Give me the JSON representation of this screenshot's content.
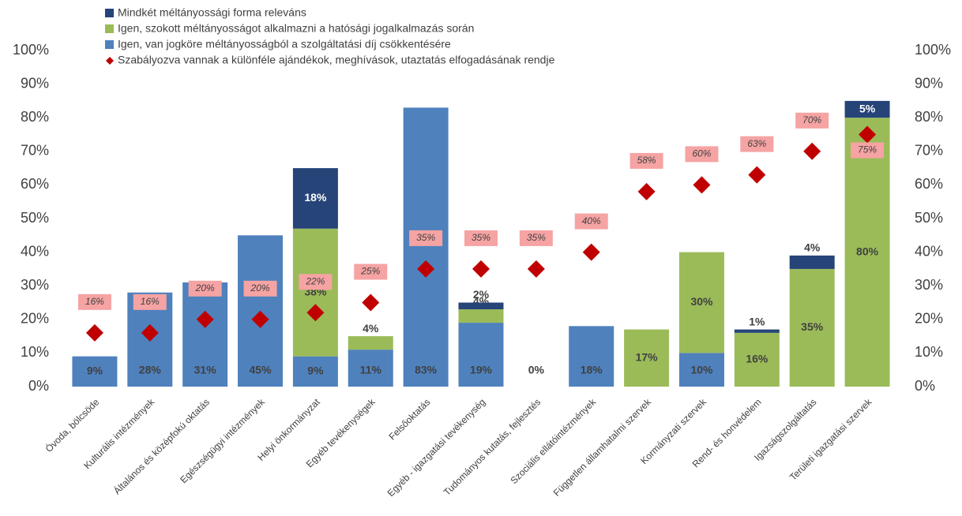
{
  "chart_data": {
    "type": "bar",
    "categories": [
      "Óvoda, bölcsöde",
      "Kulturális intézmények",
      "Általános és középfokú oktatás",
      "Egészségügyi intézmények",
      "Helyi önkormányzat",
      "Egyéb tevékenységek",
      "Felsőoktatás",
      "Egyéb - igazgatási tevékenység",
      "Tudományos kutatás, fejlesztés",
      "Szociális ellátóintézmények",
      "Független államhatalmi szervek",
      "Kormányzati szervek",
      "Rend- és honvédelem",
      "Igazságszolgáltatás",
      "Területi igazgatási szervek"
    ],
    "series": [
      {
        "name": "Igen, van jogköre méltányosságból a szolgáltatási díj csökkentésére",
        "color": "#4f81bd",
        "values": [
          9,
          28,
          31,
          45,
          9,
          11,
          83,
          19,
          0,
          18,
          null,
          10,
          null,
          null,
          null
        ],
        "value_labels": [
          "9%",
          "28%",
          "31%",
          "45%",
          "9%",
          "11%",
          "83%",
          "19%",
          "0%",
          "18%",
          null,
          "10%",
          null,
          null,
          null
        ]
      },
      {
        "name": "Igen, szokott méltányosságot alkalmazni a hatósági jogalkalmazás során",
        "color": "#9bbb59",
        "values": [
          null,
          null,
          null,
          null,
          38,
          4,
          null,
          4,
          null,
          null,
          17,
          30,
          16,
          35,
          80
        ],
        "value_labels": [
          null,
          null,
          null,
          null,
          "38%",
          "4%",
          null,
          "4%",
          null,
          null,
          "17%",
          "30%",
          "16%",
          "35%",
          "80%"
        ]
      },
      {
        "name": "Mindkét méltányossági forma releváns",
        "color": "#264478",
        "values": [
          null,
          null,
          null,
          null,
          18,
          null,
          null,
          2,
          null,
          null,
          null,
          null,
          1,
          4,
          5
        ],
        "value_labels": [
          null,
          null,
          null,
          null,
          "18%",
          null,
          null,
          "2%",
          null,
          null,
          null,
          null,
          "1%",
          "4%",
          "5%"
        ]
      },
      {
        "name": "Szabályozva vannak a különféle ajándékok, meghívások, utaztatás elfogadásának rendje",
        "color": "#c00000",
        "type": "scatter",
        "axis": "y2",
        "values": [
          16,
          16,
          20,
          20,
          22,
          25,
          35,
          35,
          35,
          40,
          58,
          60,
          63,
          70,
          75
        ],
        "value_labels": [
          "16%",
          "16%",
          "20%",
          "20%",
          "22%",
          "25%",
          "35%",
          "35%",
          "35%",
          "40%",
          "58%",
          "60%",
          "63%",
          "70%",
          "75%"
        ]
      }
    ],
    "ylim": [
      0,
      100
    ],
    "yticks": [
      {
        "value": 0,
        "label": "0%"
      },
      {
        "value": 10,
        "label": "10%"
      },
      {
        "value": 20,
        "label": "20%"
      },
      {
        "value": 30,
        "label": "30%"
      },
      {
        "value": 40,
        "label": "40%"
      },
      {
        "value": 50,
        "label": "50%"
      },
      {
        "value": 60,
        "label": "60%"
      },
      {
        "value": 70,
        "label": "70%"
      },
      {
        "value": 80,
        "label": "80%"
      },
      {
        "value": 90,
        "label": "90%"
      },
      {
        "value": 100,
        "label": "100%"
      }
    ],
    "y2lim": [
      0,
      100
    ],
    "y2ticks": [
      {
        "value": 0,
        "label": "0%"
      },
      {
        "value": 10,
        "label": "10%"
      },
      {
        "value": 20,
        "label": "20%"
      },
      {
        "value": 30,
        "label": "30%"
      },
      {
        "value": 40,
        "label": "40%"
      },
      {
        "value": 50,
        "label": "50%"
      },
      {
        "value": 60,
        "label": "60%"
      },
      {
        "value": 70,
        "label": "70%"
      },
      {
        "value": 80,
        "label": "80%"
      },
      {
        "value": 90,
        "label": "90%"
      },
      {
        "value": 100,
        "label": "100%"
      }
    ],
    "stacked": true,
    "grid": false,
    "legend": "top"
  }
}
